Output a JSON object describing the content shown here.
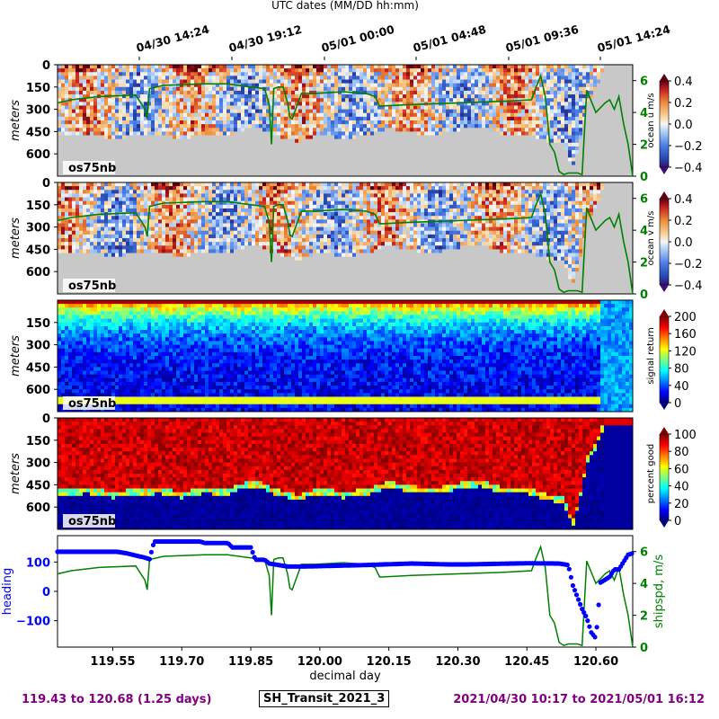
{
  "header": {
    "title": "UTC dates (MM/DD hh:mm)"
  },
  "top_axis": {
    "tick_labels": [
      "04/30 14:24",
      "04/30 19:12",
      "05/01 00:00",
      "05/01 04:48",
      "05/01 09:36",
      "05/01 14:24"
    ]
  },
  "footer": {
    "range_days": "119.43 to 120.68 (1.25 days)",
    "cruise": "SH_Transit_2021_3",
    "range_dates": "2021/04/30 10:17 to 2021/05/01 16:12"
  },
  "colors": {
    "shipspeed": "#008000",
    "heading": "#0000ff",
    "footer": "#800080",
    "no_data": "#c8c8c8"
  },
  "chart_data": [
    {
      "type": "heatmap",
      "panel": "u",
      "instrument_label": "os75nb",
      "ylabel": "meters",
      "yticks": [
        0,
        150,
        300,
        450,
        600
      ],
      "ylim": [
        0,
        750
      ],
      "xlim": [
        119.43,
        120.68
      ],
      "colorbar": {
        "label": "ocean u m/s",
        "ticks": [
          "0.4",
          "0.2",
          "0.0",
          "−0.2",
          "−0.4"
        ],
        "range": [
          -0.4,
          0.4
        ],
        "colormap": "RdBu_r"
      },
      "overlay": {
        "name": "shipspd",
        "right_ticks": [
          "6",
          "4",
          "2",
          "0"
        ],
        "range": [
          0,
          7
        ]
      }
    },
    {
      "type": "heatmap",
      "panel": "v",
      "instrument_label": "os75nb",
      "ylabel": "meters",
      "yticks": [
        0,
        150,
        300,
        450,
        600
      ],
      "ylim": [
        0,
        750
      ],
      "xlim": [
        119.43,
        120.68
      ],
      "colorbar": {
        "label": "ocean v m/s",
        "ticks": [
          "0.4",
          "0.2",
          "0.0",
          "−0.2",
          "−0.4"
        ],
        "range": [
          -0.4,
          0.4
        ],
        "colormap": "RdBu_r"
      },
      "overlay": {
        "name": "shipspd",
        "right_ticks": [
          "6",
          "4",
          "2",
          "0"
        ],
        "range": [
          0,
          7
        ]
      }
    },
    {
      "type": "heatmap",
      "panel": "amp",
      "instrument_label": "os75nb",
      "ylabel": "meters",
      "yticks": [
        150,
        300,
        450,
        600
      ],
      "ylim": [
        0,
        750
      ],
      "xlim": [
        119.43,
        120.68
      ],
      "colorbar": {
        "label": "signal return",
        "ticks": [
          "200",
          "160",
          "120",
          "80",
          "40",
          "0"
        ],
        "range": [
          0,
          200
        ],
        "colormap": "jet"
      }
    },
    {
      "type": "heatmap",
      "panel": "pg",
      "instrument_label": "os75nb",
      "ylabel": "meters",
      "yticks": [
        0,
        150,
        300,
        450,
        600
      ],
      "ylim": [
        0,
        750
      ],
      "xlim": [
        119.43,
        120.68
      ],
      "colorbar": {
        "label": "percent good",
        "ticks": [
          "100",
          "80",
          "60",
          "40",
          "20",
          "0"
        ],
        "range": [
          0,
          100
        ],
        "colormap": "jet"
      }
    },
    {
      "type": "line",
      "panel": "nav",
      "xlabel": "decimal day",
      "x_ticks": [
        "119.55",
        "119.70",
        "119.85",
        "120.00",
        "120.15",
        "120.30",
        "120.45",
        "120.60"
      ],
      "xlim": [
        119.43,
        120.68
      ],
      "ylabel_left": "heading",
      "left_ticks": [
        "100",
        "0",
        "−100"
      ],
      "left_range": [
        -190,
        190
      ],
      "ylabel_right": "shipspd, m/s",
      "right_ticks": [
        "6",
        "4",
        "2",
        "0"
      ],
      "right_range": [
        0,
        7
      ],
      "series": [
        {
          "name": "heading",
          "x": [
            119.43,
            119.56,
            119.58,
            119.62,
            119.63,
            119.64,
            119.74,
            119.75,
            119.8,
            119.81,
            119.85,
            119.86,
            119.88,
            119.89,
            119.93,
            119.97,
            120.1,
            120.2,
            120.28,
            120.32,
            120.45,
            120.52,
            120.54,
            120.55,
            120.56,
            120.57,
            120.58,
            120.59,
            120.6,
            120.61,
            120.62,
            120.63,
            120.64,
            120.65,
            120.66,
            120.67,
            120.68
          ],
          "values": [
            135,
            135,
            130,
            115,
            110,
            170,
            170,
            165,
            165,
            150,
            150,
            108,
            108,
            95,
            85,
            85,
            90,
            95,
            92,
            92,
            96,
            95,
            90,
            20,
            -20,
            -60,
            -90,
            -140,
            -160,
            30,
            40,
            50,
            75,
            75,
            100,
            125,
            130
          ]
        },
        {
          "name": "shipspd",
          "x": [
            119.43,
            119.46,
            119.52,
            119.6,
            119.62,
            119.625,
            119.63,
            119.66,
            119.75,
            119.8,
            119.85,
            119.88,
            119.89,
            119.895,
            119.9,
            119.91,
            119.92,
            119.93,
            119.935,
            119.94,
            119.96,
            119.99,
            120.05,
            120.1,
            120.12,
            120.13,
            120.2,
            120.3,
            120.4,
            120.46,
            120.47,
            120.48,
            120.49,
            120.5,
            120.51,
            120.52,
            120.53,
            120.54,
            120.56,
            120.57,
            120.58,
            120.6,
            120.62,
            120.63,
            120.64,
            120.65,
            120.66,
            120.67,
            120.68
          ],
          "values": [
            4.6,
            4.8,
            5.0,
            5.1,
            4.2,
            3.6,
            5.5,
            5.7,
            5.8,
            5.8,
            5.6,
            5.5,
            4.5,
            2.0,
            5.5,
            5.6,
            5.6,
            4.6,
            3.7,
            3.6,
            5.2,
            5.2,
            5.3,
            5.2,
            5.0,
            4.4,
            4.5,
            4.6,
            4.7,
            4.8,
            5.6,
            6.3,
            5.0,
            2.0,
            1.5,
            0.3,
            0.1,
            0.2,
            0.2,
            0.1,
            5.4,
            4.0,
            4.6,
            4.8,
            4.2,
            5.0,
            3.3,
            2.0,
            0.0
          ]
        }
      ]
    }
  ]
}
